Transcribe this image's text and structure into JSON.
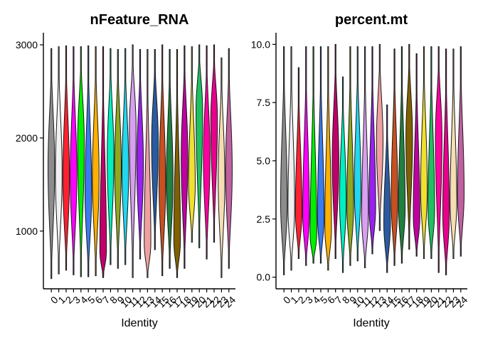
{
  "chart_data": [
    {
      "type": "violin",
      "title": "nFeature_RNA",
      "xlabel": "Identity",
      "ylabel": "",
      "ylim": [
        380,
        3130
      ],
      "yticks": [
        1000,
        2000,
        3000
      ],
      "categories": [
        "0",
        "1",
        "2",
        "3",
        "4",
        "5",
        "6",
        "7",
        "8",
        "9",
        "10",
        "11",
        "12",
        "13",
        "14",
        "15",
        "16",
        "17",
        "18",
        "19",
        "20",
        "21",
        "22",
        "23",
        "24"
      ],
      "colors": [
        "#8c8c8c",
        "#f0f0f0",
        "#ff2030",
        "#ff00ff",
        "#00f000",
        "#3a7cf0",
        "#ffb000",
        "#c0006a",
        "#00f0c0",
        "#90a820",
        "#20d8f0",
        "#d8a0f0",
        "#9a20f0",
        "#f0a0a0",
        "#2c5aa0",
        "#c85020",
        "#208040",
        "#806000",
        "#c000a0",
        "#f0e030",
        "#20c060",
        "#ff00a0",
        "#e8008c",
        "#f5deb3",
        "#c060a0"
      ],
      "series": [
        {
          "min": 490,
          "max": 2960,
          "center": 1680
        },
        {
          "min": 540,
          "max": 2980,
          "center": 1620
        },
        {
          "min": 580,
          "max": 2990,
          "center": 1560
        },
        {
          "min": 530,
          "max": 2980,
          "center": 1600
        },
        {
          "min": 510,
          "max": 2980,
          "center": 1950
        },
        {
          "min": 510,
          "max": 2990,
          "center": 1420
        },
        {
          "min": 520,
          "max": 2980,
          "center": 1580
        },
        {
          "min": 500,
          "max": 2980,
          "center": 780
        },
        {
          "min": 640,
          "max": 2960,
          "center": 1800
        },
        {
          "min": 600,
          "max": 2950,
          "center": 1700
        },
        {
          "min": 640,
          "max": 2960,
          "center": 1650
        },
        {
          "min": 500,
          "max": 3000,
          "center": 2100
        },
        {
          "min": 700,
          "max": 2950,
          "center": 1700
        },
        {
          "min": 500,
          "max": 2950,
          "center": 870
        },
        {
          "min": 800,
          "max": 2950,
          "center": 1950
        },
        {
          "min": 520,
          "max": 3000,
          "center": 1500
        },
        {
          "min": 600,
          "max": 2950,
          "center": 1550
        },
        {
          "min": 500,
          "max": 2950,
          "center": 900
        },
        {
          "min": 600,
          "max": 2990,
          "center": 1800
        },
        {
          "min": 880,
          "max": 2980,
          "center": 1500
        },
        {
          "min": 820,
          "max": 3000,
          "center": 2300
        },
        {
          "min": 700,
          "max": 2990,
          "center": 1800
        },
        {
          "min": 880,
          "max": 3000,
          "center": 2200
        },
        {
          "min": 500,
          "max": 2860,
          "center": 1550
        },
        {
          "min": 600,
          "max": 2960,
          "center": 1650
        }
      ]
    },
    {
      "type": "violin",
      "title": "percent.mt",
      "xlabel": "Identity",
      "ylabel": "",
      "ylim": [
        -0.5,
        10.5
      ],
      "yticks": [
        0.0,
        2.5,
        5.0,
        7.5,
        10.0
      ],
      "ytick_labels": [
        "0.0",
        "2.5",
        "5.0",
        "7.5",
        "10.0"
      ],
      "categories": [
        "0",
        "1",
        "2",
        "3",
        "4",
        "5",
        "6",
        "7",
        "8",
        "9",
        "10",
        "11",
        "12",
        "13",
        "14",
        "15",
        "16",
        "17",
        "18",
        "19",
        "20",
        "21",
        "22",
        "23",
        "24"
      ],
      "colors": [
        "#8c8c8c",
        "#f0f0f0",
        "#ff2030",
        "#ff00ff",
        "#00f000",
        "#3a7cf0",
        "#ffb000",
        "#c0006a",
        "#00f0c0",
        "#90a820",
        "#20d8f0",
        "#d8a0f0",
        "#9a20f0",
        "#f0a0a0",
        "#2c5aa0",
        "#c85020",
        "#208040",
        "#806000",
        "#c000a0",
        "#f0e030",
        "#20c060",
        "#ff00a0",
        "#e8008c",
        "#f5deb3",
        "#c060a0"
      ],
      "series": [
        {
          "min": 0.1,
          "max": 9.9,
          "center": 3.2
        },
        {
          "min": 0.3,
          "max": 9.9,
          "center": 3.0
        },
        {
          "min": 0.8,
          "max": 9.0,
          "center": 2.8
        },
        {
          "min": 0.5,
          "max": 9.9,
          "center": 2.7
        },
        {
          "min": 0.6,
          "max": 9.9,
          "center": 1.8
        },
        {
          "min": 0.6,
          "max": 9.9,
          "center": 2.6
        },
        {
          "min": 0.3,
          "max": 9.9,
          "center": 2.1
        },
        {
          "min": 0.8,
          "max": 10.0,
          "center": 5.0
        },
        {
          "min": 0.2,
          "max": 8.6,
          "center": 3.3
        },
        {
          "min": 0.5,
          "max": 9.9,
          "center": 3.0
        },
        {
          "min": 0.7,
          "max": 9.9,
          "center": 3.8
        },
        {
          "min": 0.4,
          "max": 9.9,
          "center": 2.6
        },
        {
          "min": 1.0,
          "max": 9.9,
          "center": 3.0
        },
        {
          "min": 2.0,
          "max": 10.0,
          "center": 5.8
        },
        {
          "min": 0.2,
          "max": 7.4,
          "center": 2.3
        },
        {
          "min": 0.5,
          "max": 9.8,
          "center": 3.3
        },
        {
          "min": 0.6,
          "max": 9.9,
          "center": 3.0
        },
        {
          "min": 1.2,
          "max": 10.0,
          "center": 6.0
        },
        {
          "min": 0.9,
          "max": 9.6,
          "center": 2.6
        },
        {
          "min": 0.8,
          "max": 9.9,
          "center": 3.8
        },
        {
          "min": 0.8,
          "max": 9.9,
          "center": 2.9
        },
        {
          "min": 0.2,
          "max": 9.9,
          "center": 6.0
        },
        {
          "min": 0.1,
          "max": 9.8,
          "center": 2.7
        },
        {
          "min": 0.8,
          "max": 9.8,
          "center": 3.2
        },
        {
          "min": 0.9,
          "max": 9.9,
          "center": 3.6
        }
      ]
    }
  ]
}
